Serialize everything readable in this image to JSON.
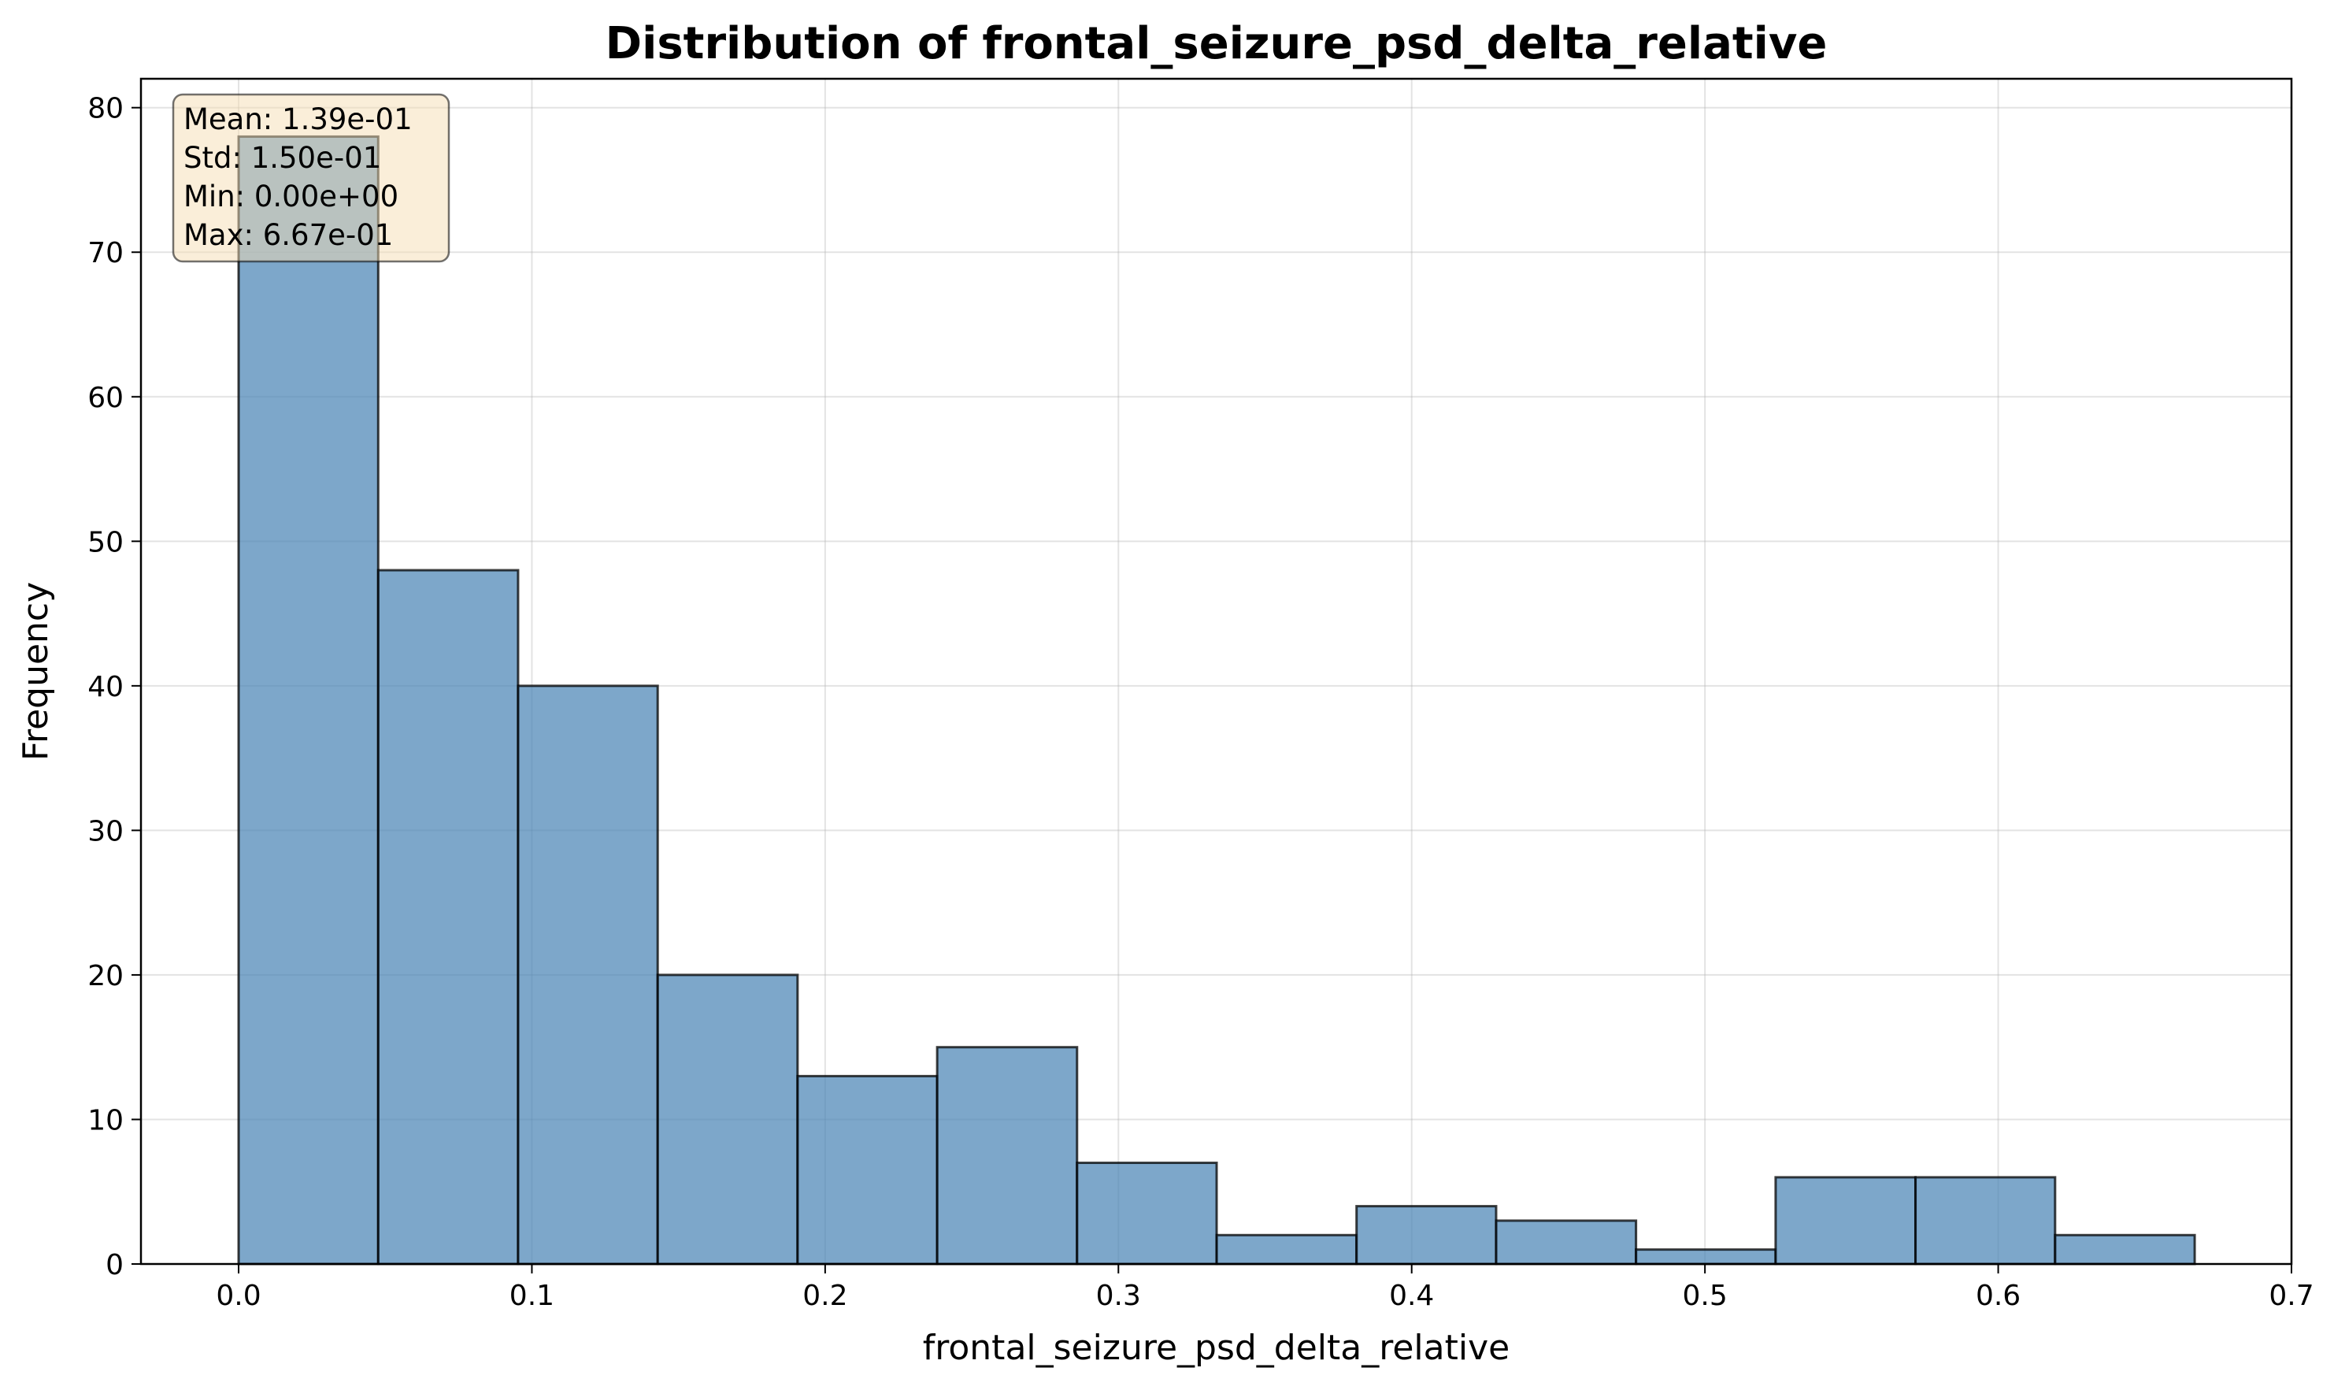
{
  "chart_data": {
    "type": "bar",
    "title": "Distribution of frontal_seizure_psd_delta_relative",
    "xlabel": "frontal_seizure_psd_delta_relative",
    "ylabel": "Frequency",
    "xlim": [
      -0.0333,
      0.7
    ],
    "ylim": [
      0,
      82
    ],
    "xticks": [
      "0.0",
      "0.1",
      "0.2",
      "0.3",
      "0.4",
      "0.5",
      "0.6",
      "0.7"
    ],
    "yticks": [
      "0",
      "10",
      "20",
      "30",
      "40",
      "50",
      "60",
      "70",
      "80"
    ],
    "grid": true,
    "bins": [
      {
        "x0": 0.0,
        "x1": 0.0476,
        "value": 78
      },
      {
        "x0": 0.0476,
        "x1": 0.0953,
        "value": 48
      },
      {
        "x0": 0.0953,
        "x1": 0.1429,
        "value": 40
      },
      {
        "x0": 0.1429,
        "x1": 0.1906,
        "value": 20
      },
      {
        "x0": 0.1906,
        "x1": 0.2382,
        "value": 13
      },
      {
        "x0": 0.2382,
        "x1": 0.2859,
        "value": 15
      },
      {
        "x0": 0.2859,
        "x1": 0.3335,
        "value": 7
      },
      {
        "x0": 0.3335,
        "x1": 0.3812,
        "value": 2
      },
      {
        "x0": 0.3812,
        "x1": 0.4288,
        "value": 4
      },
      {
        "x0": 0.4288,
        "x1": 0.4765,
        "value": 3
      },
      {
        "x0": 0.4765,
        "x1": 0.5241,
        "value": 1
      },
      {
        "x0": 0.5241,
        "x1": 0.5718,
        "value": 6
      },
      {
        "x0": 0.5718,
        "x1": 0.6194,
        "value": 6
      },
      {
        "x0": 0.6194,
        "x1": 0.667,
        "value": 2
      }
    ],
    "bar_color": "#4682b4",
    "bar_edge_color": "#000000",
    "stats_box": {
      "lines": [
        "Mean: 1.39e-01",
        "Std: 1.50e-01",
        "Min: 0.00e+00",
        "Max: 6.67e-01"
      ],
      "position": "top-left",
      "background": "#f5deb3"
    }
  }
}
